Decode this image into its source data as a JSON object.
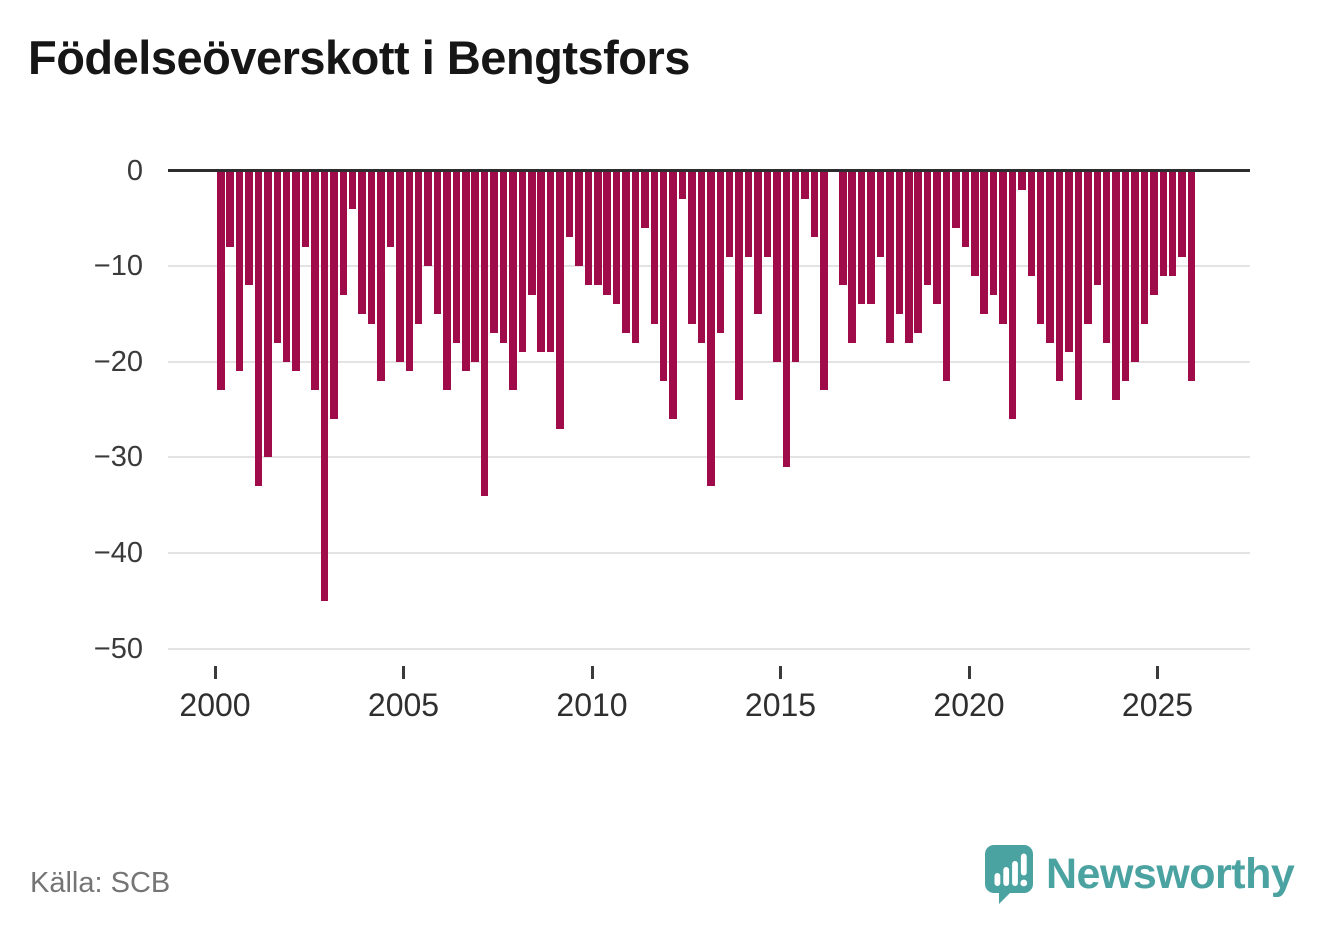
{
  "title": "Födelseöverskott i Bengtsfors",
  "source": "Källa: SCB",
  "brand": {
    "name": "Newsworthy",
    "logo_icon": "speech-bubble-bar-chart-icon",
    "color": "#4aa2a1"
  },
  "chart_data": {
    "type": "bar",
    "title": "Födelseöverskott i Bengtsfors",
    "frequency": "quarterly",
    "x_start": {
      "year": 2000,
      "quarter": 1
    },
    "x_end": {
      "year": 2025,
      "quarter": 4
    },
    "x_tick_labels": [
      "2000",
      "2005",
      "2010",
      "2015",
      "2020",
      "2025"
    ],
    "x_tick_years": [
      2000,
      2005,
      2010,
      2015,
      2020,
      2025
    ],
    "y_ticks": [
      0,
      -10,
      -20,
      -30,
      -40,
      -50
    ],
    "y_tick_labels": [
      "0",
      "−10",
      "−20",
      "−30",
      "−40",
      "−50"
    ],
    "ylim": [
      -50,
      0
    ],
    "grid": "horizontal",
    "legend": "none",
    "bar_color": "#a00b49",
    "series": [
      {
        "name": "Födelseöverskott",
        "values": [
          -23,
          -8,
          -21,
          -12,
          -33,
          -30,
          -18,
          -20,
          -21,
          -8,
          -23,
          -45,
          -26,
          -13,
          -4,
          -15,
          -16,
          -22,
          -8,
          -20,
          -21,
          -16,
          -10,
          -15,
          -23,
          -18,
          -21,
          -20,
          -34,
          -17,
          -18,
          -23,
          -19,
          -13,
          -19,
          -19,
          -27,
          -7,
          -10,
          -12,
          -12,
          -13,
          -14,
          -17,
          -18,
          -6,
          -16,
          -22,
          -26,
          -3,
          -16,
          -18,
          -33,
          -17,
          -9,
          -24,
          -9,
          -15,
          -9,
          -20,
          -31,
          -20,
          -3,
          -7,
          -23,
          0,
          -12,
          -18,
          -14,
          -14,
          -9,
          -18,
          -15,
          -18,
          -17,
          -12,
          -14,
          -22,
          -6,
          -8,
          -11,
          -15,
          -13,
          -16,
          -26,
          -2,
          -11,
          -16,
          -18,
          -22,
          -19,
          -24,
          -16,
          -12,
          -18,
          -24,
          -22,
          -20,
          -16,
          -13,
          -11,
          -11,
          -9,
          -22
        ]
      }
    ]
  }
}
